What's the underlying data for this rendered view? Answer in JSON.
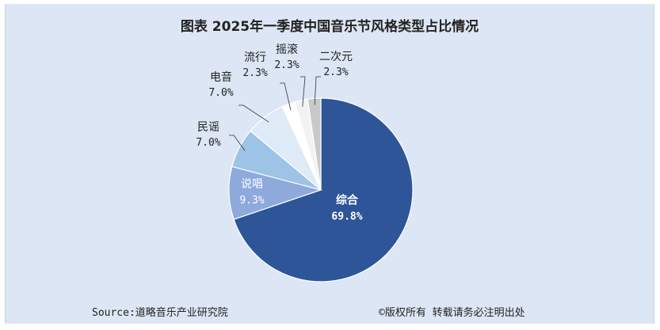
{
  "chart_data": {
    "type": "pie",
    "title": "图表  2025年一季度中国音乐节风格类型占比情况",
    "slices": [
      {
        "name": "综合",
        "value": 69.8,
        "label": "69.8%",
        "color": "#2e5597",
        "label_color": "#ffffff"
      },
      {
        "name": "说唱",
        "value": 9.3,
        "label": "9.3%",
        "color": "#8ea9dc",
        "label_color": "#ffffff"
      },
      {
        "name": "民谣",
        "value": 7.0,
        "label": "7.0%",
        "color": "#9dc3e6",
        "label_color": "#222222"
      },
      {
        "name": "电音",
        "value": 7.0,
        "label": "7.0%",
        "color": "#deebf7",
        "label_color": "#222222"
      },
      {
        "name": "流行",
        "value": 2.3,
        "label": "2.3%",
        "color": "#ffffff",
        "label_color": "#222222"
      },
      {
        "name": "摇滚",
        "value": 2.3,
        "label": "2.3%",
        "color": "#f2f2f2",
        "label_color": "#222222"
      },
      {
        "name": "二次元",
        "value": 2.3,
        "label": "2.3%",
        "color": "#c9c9c9",
        "label_color": "#222222"
      }
    ]
  },
  "footer": {
    "source": "Source:道略音乐产业研究院",
    "rights": "©版权所有  转载请务必注明出处"
  }
}
